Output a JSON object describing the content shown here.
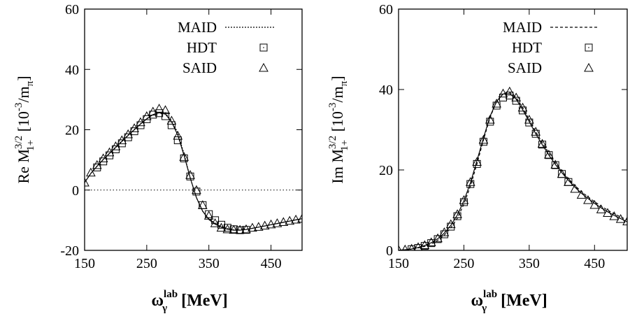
{
  "chart_data": [
    {
      "type": "line",
      "panel": "left",
      "ylabel": "Re M_{1+}^{3/2}  [10^{-3}/m_π]",
      "ylabel_parts": {
        "prefix": "Re M",
        "sup": "3/2",
        "sub": "1+",
        "unit_open": "[10",
        "unit_exp": "-3",
        "unit_mid": "/m",
        "unit_sub": "π",
        "unit_close": "]"
      },
      "xlabel": "ω_γ^lab [MeV]",
      "xlabel_parts": {
        "symbol": "ω",
        "sup": "lab",
        "sub": "γ",
        "unit": "[MeV]"
      },
      "xlim": [
        150,
        500
      ],
      "ylim": [
        -20,
        60
      ],
      "xticks": [
        "150",
        "250",
        "350",
        "450"
      ],
      "yticks": [
        "-20",
        "0",
        "20",
        "40",
        "60"
      ],
      "zero_line": true,
      "legend": {
        "position": "top-right",
        "entries": [
          "MAID",
          "HDT",
          "SAID"
        ]
      },
      "series": [
        {
          "name": "MAID",
          "style": "dotted",
          "x": [
            150,
            160,
            170,
            180,
            190,
            200,
            210,
            220,
            230,
            240,
            250,
            260,
            270,
            280,
            290,
            300,
            310,
            320,
            330,
            340,
            350,
            360,
            370,
            380,
            390,
            400,
            410,
            420,
            430,
            440,
            450,
            460,
            470,
            480,
            490,
            500
          ],
          "y": [
            2.5,
            5.5,
            8,
            10.2,
            12.2,
            14.3,
            16.3,
            18.2,
            20.1,
            22.0,
            23.7,
            25.0,
            25.8,
            25.5,
            23.0,
            19.0,
            12.0,
            4.0,
            -2.5,
            -7.0,
            -9.5,
            -11.0,
            -12.0,
            -12.8,
            -13.2,
            -13.2,
            -13.0,
            -12.7,
            -12.3,
            -11.9,
            -11.5,
            -11.1,
            -10.7,
            -10.3,
            -9.9,
            -9.6
          ]
        },
        {
          "name": "HDT",
          "style": "solid",
          "x": [
            150,
            160,
            170,
            180,
            190,
            200,
            210,
            220,
            230,
            240,
            250,
            260,
            270,
            280,
            290,
            300,
            310,
            320,
            330,
            340,
            350,
            360,
            370,
            380,
            390,
            400,
            410,
            420,
            430,
            440,
            450,
            460,
            470,
            480,
            490,
            500
          ],
          "y": [
            2.5,
            5.5,
            7.9,
            10.1,
            12.1,
            14.1,
            16.1,
            18.1,
            20.0,
            21.9,
            23.6,
            25.0,
            25.6,
            25.2,
            22.6,
            18.2,
            11.5,
            4.0,
            -2.5,
            -7.0,
            -9.8,
            -11.3,
            -12.3,
            -13.0,
            -13.3,
            -13.3,
            -13.1,
            -12.7,
            -12.3,
            -11.9,
            -11.5,
            -11.1,
            -10.7,
            -10.3,
            -9.9,
            -9.5
          ]
        },
        {
          "name": "HDT-points",
          "marker": "square",
          "x": [
            170,
            180,
            190,
            200,
            210,
            220,
            230,
            240,
            250,
            260,
            270,
            280,
            290,
            300,
            310,
            320,
            330,
            340,
            350,
            360,
            370,
            380,
            390,
            400,
            410
          ],
          "y": [
            7.5,
            9.5,
            11.5,
            13.5,
            15.5,
            17.5,
            19.5,
            21.5,
            23.5,
            25.0,
            25.5,
            24.5,
            21.5,
            16.5,
            10.5,
            4.5,
            -0.5,
            -5.0,
            -8.0,
            -10.0,
            -11.5,
            -12.5,
            -13.0,
            -13.3,
            -13.2
          ]
        },
        {
          "name": "SAID",
          "marker": "triangle",
          "x": [
            150,
            160,
            170,
            180,
            190,
            200,
            210,
            220,
            230,
            240,
            250,
            260,
            270,
            280,
            290,
            300,
            310,
            320,
            330,
            340,
            350,
            360,
            370,
            380,
            390,
            400,
            410,
            420,
            430,
            440,
            450,
            460,
            470,
            480,
            490,
            500
          ],
          "y": [
            2.5,
            5.8,
            8.3,
            10.5,
            12.5,
            14.5,
            16.5,
            18.5,
            20.5,
            22.5,
            24.5,
            26.0,
            27.0,
            26.5,
            23.0,
            18.0,
            11.0,
            5.0,
            0.0,
            -5.0,
            -8.5,
            -11.0,
            -12.5,
            -13.0,
            -13.2,
            -13.2,
            -13.0,
            -12.5,
            -12.2,
            -11.8,
            -11.4,
            -11.0,
            -10.6,
            -10.2,
            -9.8,
            -9.5
          ]
        }
      ]
    },
    {
      "type": "line",
      "panel": "right",
      "ylabel": "Im M_{1+}^{3/2}  [10^{-3}/m_π]",
      "ylabel_parts": {
        "prefix": "Im M",
        "sup": "3/2",
        "sub": "1+",
        "unit_open": "[10",
        "unit_exp": "-3",
        "unit_mid": "/m",
        "unit_sub": "π",
        "unit_close": "]"
      },
      "xlabel": "ω_γ^lab [MeV]",
      "xlabel_parts": {
        "symbol": "ω",
        "sup": "lab",
        "sub": "γ",
        "unit": "[MeV]"
      },
      "xlim": [
        150,
        500
      ],
      "ylim": [
        0,
        60
      ],
      "xticks": [
        "150",
        "250",
        "350",
        "450"
      ],
      "yticks": [
        "0",
        "20",
        "40",
        "60"
      ],
      "zero_line": false,
      "legend": {
        "position": "top-right",
        "entries": [
          "MAID",
          "HDT",
          "SAID"
        ]
      },
      "series": [
        {
          "name": "MAID",
          "style": "dashed",
          "x": [
            150,
            160,
            170,
            180,
            190,
            200,
            210,
            220,
            230,
            240,
            250,
            260,
            270,
            280,
            290,
            300,
            310,
            320,
            330,
            340,
            350,
            360,
            370,
            380,
            390,
            400,
            410,
            420,
            430,
            440,
            450,
            460,
            470,
            480,
            490,
            500
          ],
          "y": [
            0.05,
            0.15,
            0.3,
            0.6,
            1.0,
            1.6,
            2.5,
            3.8,
            5.6,
            8.0,
            11.5,
            16.0,
            21.5,
            27.5,
            33.0,
            37.0,
            39.0,
            39.3,
            38.0,
            35.5,
            32.5,
            29.5,
            26.8,
            24.2,
            21.8,
            19.7,
            17.8,
            16.1,
            14.6,
            13.3,
            12.1,
            11.0,
            10.0,
            9.1,
            8.3,
            7.6
          ]
        },
        {
          "name": "HDT",
          "style": "solid",
          "x": [
            150,
            160,
            170,
            180,
            190,
            200,
            210,
            220,
            230,
            240,
            250,
            260,
            270,
            280,
            290,
            300,
            310,
            320,
            330,
            340,
            350,
            360,
            370,
            380,
            390,
            400,
            410,
            420,
            430,
            440,
            450,
            460,
            470,
            480,
            490,
            500
          ],
          "y": [
            0.05,
            0.15,
            0.35,
            0.7,
            1.2,
            1.9,
            2.9,
            4.3,
            6.2,
            8.8,
            12.3,
            16.8,
            22.3,
            28.0,
            33.3,
            37.0,
            38.9,
            39.0,
            37.6,
            35.0,
            32.0,
            29.0,
            26.3,
            23.7,
            21.4,
            19.3,
            17.4,
            15.7,
            14.2,
            12.9,
            11.7,
            10.6,
            9.6,
            8.7,
            7.9,
            7.1
          ]
        },
        {
          "name": "HDT-points",
          "marker": "square",
          "x": [
            170,
            180,
            190,
            200,
            210,
            220,
            230,
            240,
            250,
            260,
            270,
            280,
            290,
            300,
            310,
            320,
            330,
            340,
            350,
            360,
            370,
            380,
            390,
            400,
            410
          ],
          "y": [
            0.3,
            0.6,
            1.1,
            1.8,
            2.8,
            4.0,
            5.9,
            8.5,
            12.0,
            16.5,
            21.5,
            27.0,
            32.0,
            36.0,
            38.0,
            38.5,
            37.2,
            34.8,
            31.8,
            29.0,
            26.3,
            23.7,
            21.2,
            19.0,
            17.0
          ]
        },
        {
          "name": "SAID",
          "marker": "triangle",
          "x": [
            150,
            160,
            170,
            180,
            190,
            200,
            210,
            220,
            230,
            240,
            250,
            260,
            270,
            280,
            290,
            300,
            310,
            320,
            330,
            340,
            350,
            360,
            370,
            380,
            390,
            400,
            410,
            420,
            430,
            440,
            450,
            460,
            470,
            480,
            490,
            500
          ],
          "y": [
            0.1,
            0.2,
            0.4,
            0.8,
            1.3,
            2.0,
            3.0,
            4.5,
            6.5,
            9.0,
            12.5,
            17.0,
            22.0,
            27.5,
            32.5,
            36.5,
            39.0,
            39.5,
            38.0,
            35.5,
            32.5,
            29.5,
            26.5,
            23.8,
            21.3,
            19.0,
            17.0,
            15.3,
            13.8,
            12.5,
            11.3,
            10.2,
            9.3,
            8.5,
            7.8,
            7.2
          ]
        }
      ]
    }
  ]
}
